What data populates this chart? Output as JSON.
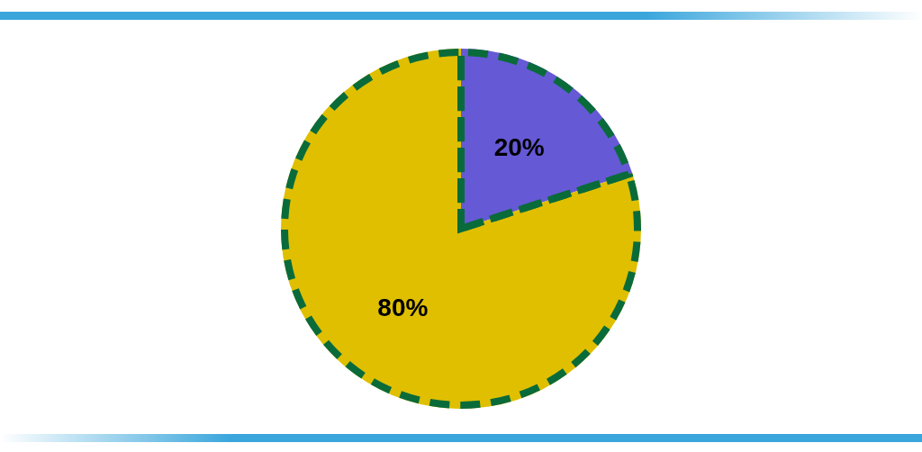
{
  "chart_data": {
    "type": "pie",
    "categories": [
      null,
      null
    ],
    "values": [
      20,
      80
    ],
    "colors": [
      "#6559d6",
      "#dfbf00"
    ],
    "value_labels": [
      "20%",
      "80%"
    ]
  }
}
